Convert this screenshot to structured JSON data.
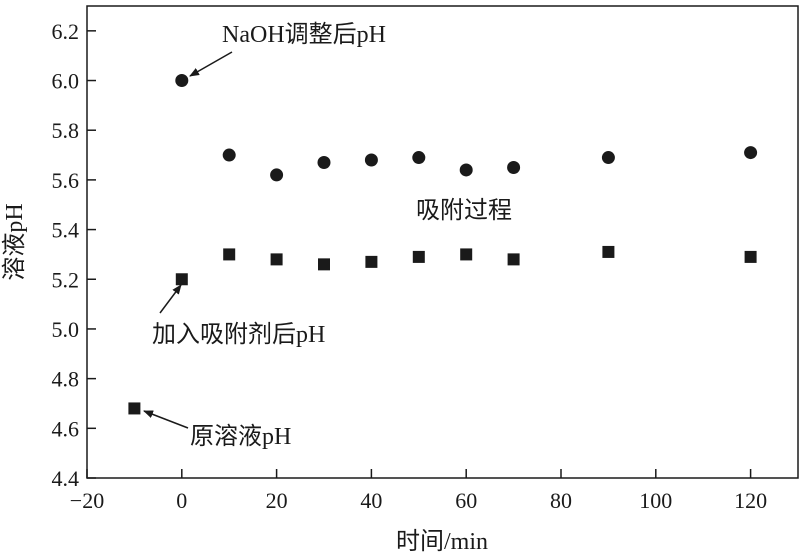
{
  "chart_data": {
    "type": "scatter",
    "xlabel": "时间/min",
    "ylabel": "溶液pH",
    "xlim": [
      -20,
      130
    ],
    "ylim": [
      4.4,
      6.3
    ],
    "xticks": [
      -20,
      0,
      20,
      40,
      60,
      80,
      100,
      120
    ],
    "yticks": [
      4.4,
      4.6,
      4.8,
      5.0,
      5.2,
      5.4,
      5.6,
      5.8,
      6.0,
      6.2
    ],
    "xtick_labels": [
      "−20",
      "0",
      "20",
      "40",
      "60",
      "80",
      "100",
      "120"
    ],
    "ytick_labels": [
      "4.4",
      "4.6",
      "4.8",
      "5.0",
      "5.2",
      "5.4",
      "5.6",
      "5.8",
      "6.0",
      "6.2"
    ],
    "grid": false,
    "series": [
      {
        "marker": "circle",
        "color": "#1a1a1a",
        "points": [
          {
            "x": 0,
            "y": 6.0
          },
          {
            "x": 10,
            "y": 5.7
          },
          {
            "x": 20,
            "y": 5.62
          },
          {
            "x": 30,
            "y": 5.67
          },
          {
            "x": 40,
            "y": 5.68
          },
          {
            "x": 50,
            "y": 5.69
          },
          {
            "x": 60,
            "y": 5.64
          },
          {
            "x": 70,
            "y": 5.65
          },
          {
            "x": 90,
            "y": 5.69
          },
          {
            "x": 120,
            "y": 5.71
          }
        ]
      },
      {
        "marker": "square",
        "color": "#1a1a1a",
        "points": [
          {
            "x": -10,
            "y": 4.68
          },
          {
            "x": 0,
            "y": 5.2
          },
          {
            "x": 10,
            "y": 5.3
          },
          {
            "x": 20,
            "y": 5.28
          },
          {
            "x": 30,
            "y": 5.26
          },
          {
            "x": 40,
            "y": 5.27
          },
          {
            "x": 50,
            "y": 5.29
          },
          {
            "x": 60,
            "y": 5.3
          },
          {
            "x": 70,
            "y": 5.28
          },
          {
            "x": 90,
            "y": 5.31
          },
          {
            "x": 120,
            "y": 5.29
          }
        ]
      }
    ],
    "annotations": [
      {
        "text": "NaOH调整后pH",
        "arrow_to": {
          "x": 0,
          "y": 6.0
        }
      },
      {
        "text": "吸附过程"
      },
      {
        "text": "加入吸附剂后pH",
        "arrow_to": {
          "x": 0,
          "y": 5.2
        }
      },
      {
        "text": "原溶液pH",
        "arrow_to": {
          "x": -10,
          "y": 4.68
        }
      }
    ]
  }
}
